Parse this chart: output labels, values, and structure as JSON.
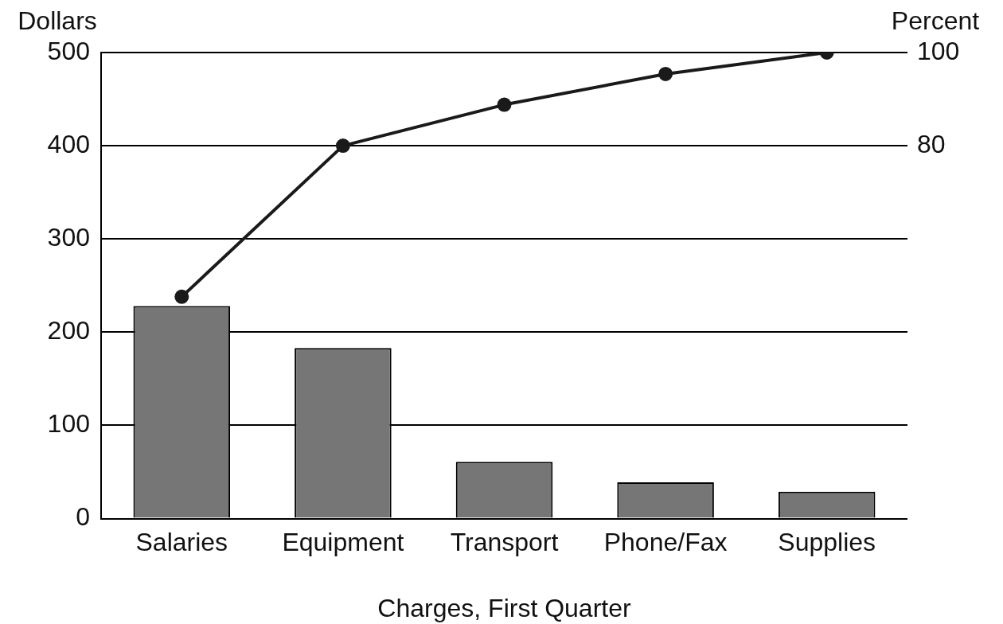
{
  "chart_data": {
    "type": "bar",
    "xlabel": "Charges, First Quarter",
    "ylabel": "Dollars",
    "y2label": "Percent",
    "categories": [
      "Salaries",
      "Equipment",
      "Transport",
      "Phone/Fax",
      "Supplies"
    ],
    "series": [
      {
        "color": "#767676",
        "values": [
          228,
          183,
          61,
          39,
          29
        ]
      },
      {
        "type": "line",
        "axis": "y2",
        "color": "#1a1a1a",
        "values": [
          47.6,
          80,
          88.8,
          95.4,
          100
        ]
      }
    ],
    "ylim": [
      0,
      500
    ],
    "yticks": [
      0,
      100,
      200,
      300,
      400,
      500
    ],
    "y2lim": [
      0,
      100
    ],
    "y2ticks": [
      80,
      100
    ],
    "grid": "y",
    "legend": false,
    "marker": "circle",
    "line_style": "solid"
  }
}
